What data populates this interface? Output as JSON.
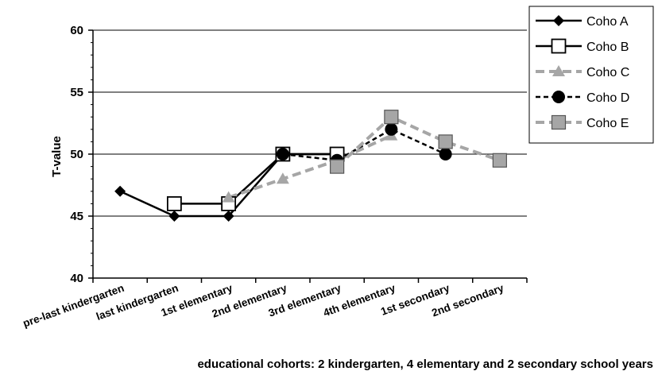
{
  "chart_data": {
    "type": "line",
    "xlabel": "educational cohorts: 2 kindergarten, 4 elementary and 2 secondary school years",
    "ylabel": "T-value",
    "ylim": [
      40,
      60
    ],
    "yticks": [
      "40",
      "45",
      "50",
      "55",
      "60"
    ],
    "grid": "horizontal",
    "legend_position": "top-right",
    "categories": [
      "pre-last kindergarten",
      "last kindergarten",
      "1st elementary",
      "2nd elementary",
      "3rd elementary",
      "4th elementary",
      "1st secondary",
      "2nd secondary"
    ],
    "series": [
      {
        "name": "Coho A",
        "color": "#000000",
        "line": "solid",
        "marker": "diamond",
        "values": [
          47,
          45,
          45,
          50,
          50,
          null,
          null,
          null
        ]
      },
      {
        "name": "Coho B",
        "color": "#000000",
        "line": "solid",
        "marker": "square-open",
        "values": [
          null,
          46,
          46,
          50,
          50,
          null,
          null,
          null
        ]
      },
      {
        "name": "Coho C",
        "color": "#a6a6a6",
        "line": "dashed",
        "marker": "triangle",
        "values": [
          null,
          null,
          46.5,
          48,
          49.5,
          51.5,
          null,
          null
        ]
      },
      {
        "name": "Coho D",
        "color": "#000000",
        "line": "dashed",
        "marker": "circle",
        "values": [
          null,
          null,
          null,
          50,
          49.5,
          52,
          50,
          null
        ]
      },
      {
        "name": "Coho E",
        "color": "#a6a6a6",
        "line": "dashed",
        "marker": "square",
        "values": [
          null,
          null,
          null,
          null,
          49,
          53,
          51,
          49.5
        ]
      }
    ]
  }
}
